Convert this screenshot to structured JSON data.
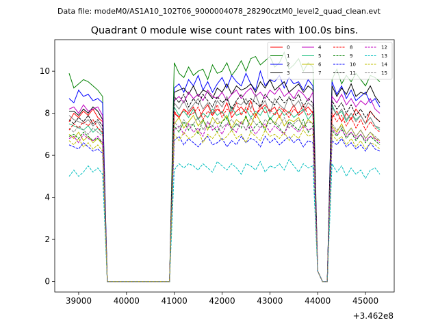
{
  "chart_data": {
    "type": "line",
    "suptitle": "Data file: modeM0/AS1A10_102T06_9000004078_28290cztM0_level2_quad_clean.evt",
    "title": "Quadrant 0 module wise count rates with 100.0s bins.",
    "xlabel": "",
    "ylabel": "",
    "offset_text": "+3.462e8",
    "xlim": [
      38500,
      45600
    ],
    "ylim": [
      -0.5,
      11.5
    ],
    "xticks": [
      39000,
      40000,
      41000,
      42000,
      43000,
      44000,
      45000
    ],
    "xtick_labels": [
      "39000",
      "40000",
      "41000",
      "42000",
      "43000",
      "44000",
      "45000"
    ],
    "yticks": [
      0,
      2,
      4,
      6,
      8,
      10
    ],
    "ytick_labels": [
      "0",
      "2",
      "4",
      "6",
      "8",
      "10"
    ],
    "x_start": 38800,
    "x_step": 100,
    "n_points": 66,
    "gap_index_range": [
      8,
      21
    ],
    "gap2_index_range": [
      51,
      53
    ],
    "series": [
      {
        "name": "0",
        "color": "#ff0000",
        "dash": "solid",
        "pre": [
          7.6,
          8.0,
          7.8,
          8.1,
          7.9,
          8.2,
          7.8,
          7.6
        ],
        "post": [
          8.0,
          7.8,
          8.2,
          8.0,
          8.3,
          7.7,
          8.1,
          8.4,
          7.9,
          8.2,
          8.0,
          8.5,
          7.8,
          8.1,
          8.3,
          8.0,
          8.6,
          7.9,
          8.2,
          8.4,
          8.1,
          8.3,
          7.8,
          8.2,
          8.0,
          8.4,
          7.9,
          8.1,
          8.3,
          8.0
        ],
        "post2": [
          7.8,
          8.1,
          7.6,
          8.0,
          7.7,
          8.2,
          7.9,
          7.5,
          8.1,
          7.8,
          7.6,
          7.3
        ]
      },
      {
        "name": "1",
        "color": "#008000",
        "dash": "solid",
        "pre": [
          9.9,
          9.2,
          9.4,
          9.6,
          9.5,
          9.3,
          9.1,
          8.8
        ],
        "post": [
          10.4,
          9.9,
          9.7,
          10.2,
          9.8,
          10.0,
          10.1,
          9.6,
          10.3,
          9.9,
          10.0,
          10.4,
          9.8,
          10.1,
          10.5,
          10.0,
          10.6,
          10.7,
          10.3,
          10.5,
          10.7,
          10.2,
          10.4,
          10.9,
          10.1,
          10.3,
          10.6,
          10.0,
          10.4,
          10.2
        ],
        "post2": [
          9.6,
          10.1,
          9.4,
          9.8,
          9.5,
          9.9,
          9.6,
          9.3,
          9.8,
          9.7,
          9.5,
          9.3
        ]
      },
      {
        "name": "2",
        "color": "#0000ff",
        "dash": "solid",
        "pre": [
          8.7,
          8.5,
          9.1,
          8.8,
          8.9,
          8.6,
          8.7,
          8.5
        ],
        "post": [
          9.2,
          9.4,
          9.0,
          9.6,
          9.3,
          9.8,
          9.1,
          9.5,
          9.0,
          9.4,
          9.7,
          9.2,
          9.8,
          9.5,
          9.3,
          9.9,
          9.4,
          9.1,
          10.0,
          9.3,
          9.6,
          9.5,
          9.8,
          9.2,
          9.7,
          9.4,
          9.5,
          9.1,
          9.6,
          9.3
        ],
        "post2": [
          9.5,
          8.9,
          9.3,
          8.7,
          9.1,
          8.6,
          8.8,
          9.0,
          8.5,
          8.7,
          8.3,
          7.9
        ]
      },
      {
        "name": "3",
        "color": "#000000",
        "dash": "solid",
        "pre": [
          8.1,
          8.1,
          7.9,
          8.2,
          8.0,
          8.3,
          8.1,
          7.7
        ],
        "post": [
          9.0,
          9.1,
          9.2,
          8.9,
          9.3,
          8.8,
          9.1,
          9.0,
          8.7,
          9.2,
          9.0,
          9.4,
          8.9,
          9.3,
          9.1,
          9.2,
          9.4,
          9.0,
          9.5,
          9.2,
          9.6,
          9.1,
          9.3,
          9.5,
          9.0,
          9.2,
          9.4,
          9.0,
          9.3,
          9.1
        ],
        "post2": [
          9.3,
          8.8,
          9.2,
          8.9,
          9.4,
          8.8,
          9.0,
          8.9,
          9.3,
          8.8,
          8.5,
          8.1
        ]
      },
      {
        "name": "4",
        "color": "#bf00bf",
        "dash": "solid",
        "pre": [
          8.2,
          8.3,
          8.0,
          8.4,
          8.1,
          8.2,
          8.3,
          7.9
        ],
        "post": [
          8.6,
          8.8,
          8.5,
          9.0,
          8.7,
          8.9,
          8.6,
          9.1,
          8.8,
          8.7,
          9.0,
          8.6,
          8.9,
          9.1,
          8.7,
          9.0,
          9.2,
          8.8,
          9.0,
          8.7,
          9.1,
          8.9,
          9.2,
          8.8,
          9.0,
          8.7,
          9.1,
          8.9,
          8.6,
          9.0
        ],
        "post2": [
          8.8,
          8.5,
          8.9,
          8.4,
          8.7,
          8.3,
          8.6,
          8.4,
          8.7,
          8.2,
          8.0,
          7.8
        ]
      },
      {
        "name": "5",
        "color": "#20c080",
        "dash": "solid",
        "pre": [
          7.5,
          7.4,
          7.3,
          7.2,
          7.4,
          7.1,
          7.3,
          7.0
        ],
        "post": [
          8.3,
          7.9,
          8.1,
          7.8,
          8.2,
          7.7,
          8.0,
          7.8,
          8.2,
          7.9,
          8.1,
          7.7,
          8.3,
          7.9,
          8.0,
          8.2,
          7.8,
          8.1,
          7.9,
          8.3,
          7.7,
          8.0,
          8.2,
          7.9,
          8.1,
          7.8,
          8.0,
          8.2,
          7.7,
          8.0
        ],
        "post2": [
          8.4,
          7.9,
          8.1,
          7.6,
          8.0,
          7.7,
          7.9,
          7.5,
          7.8,
          7.4,
          7.2,
          7.0
        ]
      },
      {
        "name": "6",
        "color": "#bfbf00",
        "dash": "solid",
        "pre": [
          7.0,
          6.8,
          7.1,
          6.7,
          6.9,
          6.6,
          6.8,
          6.5
        ],
        "post": [
          7.5,
          7.8,
          7.3,
          7.6,
          7.9,
          7.4,
          7.7,
          7.2,
          7.8,
          7.5,
          7.6,
          7.9,
          7.3,
          7.7,
          7.5,
          7.8,
          7.4,
          8.0,
          7.6,
          7.3,
          7.8,
          7.5,
          7.9,
          7.4,
          7.7,
          7.6,
          7.8,
          7.3,
          7.7,
          7.5
        ],
        "post2": [
          7.4,
          7.1,
          7.5,
          7.0,
          7.3,
          6.9,
          7.2,
          6.8,
          7.1,
          6.8,
          6.7,
          6.5
        ]
      },
      {
        "name": "7",
        "color": "#808080",
        "dash": "solid",
        "pre": [
          7.9,
          7.7,
          7.6,
          7.5,
          7.7,
          7.4,
          7.6,
          7.2
        ],
        "post": [
          8.5,
          8.2,
          8.6,
          8.1,
          8.4,
          8.7,
          8.2,
          8.5,
          8.0,
          8.6,
          8.3,
          8.8,
          8.1,
          8.5,
          8.4,
          8.7,
          8.2,
          8.9,
          8.3,
          8.6,
          8.0,
          8.7,
          8.4,
          8.2,
          8.8,
          8.3,
          8.6,
          8.1,
          8.5,
          8.3
        ],
        "post2": [
          8.3,
          7.9,
          8.2,
          7.7,
          8.0,
          7.6,
          7.9,
          7.5,
          7.8,
          7.4,
          7.3,
          7.1
        ]
      },
      {
        "name": "8",
        "color": "#ff0000",
        "dash": "dashed",
        "pre": [
          7.2,
          7.5,
          7.3,
          7.6,
          7.4,
          7.7,
          7.3,
          7.1
        ],
        "post": [
          8.1,
          7.8,
          8.2,
          7.9,
          8.0,
          8.3,
          7.7,
          8.1,
          7.9,
          8.4,
          7.8,
          8.2,
          8.0,
          8.5,
          7.9,
          8.3,
          8.1,
          7.8,
          8.4,
          8.0,
          8.2,
          7.9,
          8.3,
          8.1,
          7.8,
          8.2,
          8.0,
          8.4,
          7.9,
          8.1
        ],
        "post2": [
          8.0,
          7.6,
          7.9,
          7.4,
          7.8,
          7.3,
          7.7,
          7.2,
          7.6,
          7.3,
          7.1,
          6.9
        ]
      },
      {
        "name": "9",
        "color": "#008000",
        "dash": "dashed",
        "pre": [
          6.9,
          7.0,
          6.8,
          7.1,
          6.9,
          6.7,
          6.8,
          6.6
        ],
        "post": [
          7.4,
          7.1,
          7.6,
          7.2,
          7.5,
          7.0,
          7.7,
          7.3,
          7.4,
          7.1,
          7.6,
          7.8,
          7.2,
          7.5,
          7.3,
          7.9,
          7.1,
          7.4,
          7.6,
          7.2,
          7.8,
          7.5,
          7.3,
          7.0,
          7.6,
          7.4,
          7.2,
          7.7,
          7.1,
          7.4
        ],
        "post2": [
          7.2,
          6.9,
          7.3,
          6.8,
          7.1,
          6.7,
          7.0,
          6.6,
          6.9,
          6.7,
          6.5,
          6.4
        ]
      },
      {
        "name": "10",
        "color": "#0000ff",
        "dash": "dashed",
        "pre": [
          6.5,
          6.4,
          6.3,
          6.6,
          6.4,
          6.2,
          6.3,
          6.1
        ],
        "post": [
          6.7,
          6.9,
          6.5,
          6.8,
          6.6,
          6.4,
          6.7,
          6.9,
          6.5,
          6.6,
          6.8,
          6.4,
          6.7,
          6.5,
          6.9,
          6.6,
          6.8,
          6.7,
          6.4,
          6.9,
          6.6,
          6.8,
          6.5,
          6.7,
          6.9,
          6.6,
          6.8,
          6.4,
          6.7,
          6.6
        ],
        "post2": [
          6.7,
          6.5,
          6.8,
          6.4,
          6.6,
          6.3,
          6.5,
          6.2,
          6.6,
          6.3,
          6.2,
          6.0
        ]
      },
      {
        "name": "11",
        "color": "#000000",
        "dash": "dashed",
        "pre": [
          7.7,
          7.5,
          7.8,
          7.6,
          7.9,
          7.5,
          7.7,
          7.4
        ],
        "post": [
          8.8,
          8.5,
          8.9,
          8.3,
          8.7,
          8.4,
          8.9,
          8.6,
          8.3,
          8.8,
          8.5,
          8.7,
          8.2,
          8.6,
          8.9,
          8.4,
          8.7,
          8.5,
          8.3,
          8.9,
          8.6,
          8.4,
          8.8,
          8.5,
          8.7,
          8.6,
          8.9,
          8.3,
          8.7,
          8.5
        ],
        "post2": [
          8.6,
          8.2,
          8.5,
          8.0,
          8.4,
          7.9,
          8.2,
          7.8,
          8.1,
          7.8,
          7.6,
          7.3
        ]
      },
      {
        "name": "12",
        "color": "#bf00bf",
        "dash": "dashed",
        "pre": [
          6.8,
          6.9,
          6.6,
          7.0,
          6.8,
          6.7,
          6.9,
          6.6
        ],
        "post": [
          7.2,
          7.4,
          7.0,
          7.5,
          7.1,
          7.3,
          6.9,
          7.6,
          7.2,
          7.4,
          7.0,
          7.5,
          7.3,
          7.1,
          7.6,
          7.2,
          7.4,
          7.0,
          7.3,
          7.5,
          7.1,
          7.4,
          7.2,
          7.0,
          7.5,
          7.3,
          7.1,
          7.4,
          7.2,
          7.3
        ],
        "post2": [
          7.3,
          7.0,
          7.2,
          6.9,
          7.1,
          6.8,
          7.0,
          6.7,
          6.9,
          6.8,
          6.6,
          6.5
        ]
      },
      {
        "name": "13",
        "color": "#00bfbf",
        "dash": "dashed",
        "pre": [
          5.0,
          5.3,
          5.0,
          5.2,
          5.5,
          5.2,
          5.4,
          5.1
        ],
        "post": [
          5.3,
          5.6,
          5.4,
          5.6,
          5.5,
          5.3,
          5.6,
          5.4,
          5.2,
          5.7,
          5.5,
          5.3,
          5.6,
          5.4,
          5.1,
          5.6,
          5.5,
          5.3,
          5.7,
          5.2,
          5.5,
          5.4,
          5.6,
          5.3,
          5.8,
          5.5,
          5.2,
          5.6,
          5.4,
          5.5
        ],
        "post2": [
          5.6,
          5.2,
          5.5,
          5.0,
          5.4,
          5.1,
          5.3,
          4.9,
          5.3,
          5.4,
          5.1,
          4.9
        ]
      },
      {
        "name": "14",
        "color": "#bfbf00",
        "dash": "dashed",
        "pre": [
          6.7,
          6.5,
          6.8,
          6.4,
          6.6,
          6.3,
          6.5,
          6.2
        ],
        "post": [
          7.0,
          6.7,
          7.1,
          6.8,
          6.9,
          7.2,
          6.6,
          7.0,
          6.8,
          7.1,
          6.7,
          6.9,
          7.2,
          6.8,
          7.0,
          6.6,
          7.1,
          6.9,
          6.7,
          7.2,
          6.9,
          7.0,
          6.8,
          7.1,
          6.7,
          7.0,
          6.8,
          7.2,
          6.9,
          7.0
        ],
        "post2": [
          7.0,
          6.7,
          6.9,
          6.5,
          6.8,
          6.4,
          6.7,
          6.3,
          6.6,
          6.5,
          6.3,
          6.4
        ]
      },
      {
        "name": "15",
        "color": "#808080",
        "dash": "dashed",
        "pre": [
          7.3,
          7.1,
          7.4,
          7.2,
          7.0,
          7.3,
          7.1,
          6.9
        ],
        "post": [
          7.6,
          7.3,
          7.7,
          7.4,
          7.5,
          7.8,
          7.2,
          7.6,
          7.4,
          7.8,
          7.3,
          7.5,
          7.7,
          7.4,
          7.6,
          7.2,
          7.8,
          7.5,
          7.3,
          7.7,
          7.5,
          7.6,
          7.4,
          7.8,
          7.3,
          7.5,
          7.7,
          7.4,
          7.6,
          7.5
        ],
        "post2": [
          7.5,
          7.2,
          7.4,
          7.0,
          7.3,
          6.9,
          7.2,
          6.8,
          7.1,
          6.9,
          6.7,
          6.6
        ]
      }
    ]
  }
}
